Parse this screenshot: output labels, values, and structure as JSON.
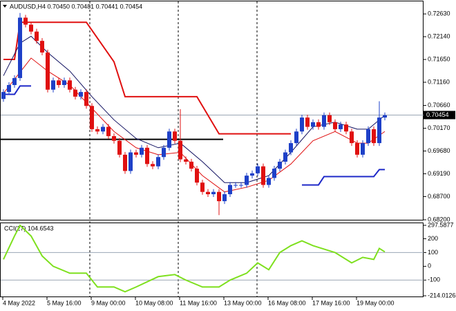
{
  "chart_data": [
    {
      "type": "candlestick",
      "title": "AUDUSD,H4  0.70450 0.70481 0.70441 0.70454",
      "categories": [
        "4 May 2022",
        null,
        null,
        null,
        null,
        null,
        null,
        null,
        "5 May 16:00",
        null,
        null,
        null,
        null,
        null,
        null,
        null,
        "9 May 00:00",
        null,
        null,
        null,
        null,
        null,
        null,
        null,
        "10 May 08:00",
        null,
        null,
        null,
        null,
        null,
        null,
        null,
        "11 May 16:00",
        null,
        null,
        null,
        null,
        null,
        null,
        null,
        "13 May 00:00",
        null,
        null,
        null,
        null,
        null,
        null,
        null,
        "16 May 08:00",
        null,
        null,
        null,
        null,
        null,
        null,
        null,
        "17 May 16:00",
        null,
        null,
        null,
        null,
        null,
        null,
        null,
        "19 May 00:00",
        null,
        null,
        null,
        null,
        null
      ],
      "open": [
        0.708,
        0.7095,
        0.711,
        0.7125,
        0.7255,
        0.724,
        0.7225,
        0.7205,
        0.718,
        0.71,
        0.712,
        0.711,
        0.712,
        0.71,
        0.7085,
        0.7095,
        0.7065,
        0.7015,
        0.701,
        0.702,
        0.7,
        0.699,
        0.696,
        0.6925,
        0.6965,
        0.696,
        0.6975,
        0.694,
        0.6935,
        0.6955,
        0.6975,
        0.701,
        0.699,
        0.695,
        0.6945,
        0.693,
        0.69,
        0.688,
        0.6875,
        0.688,
        0.686,
        0.6875,
        0.6895,
        0.6895,
        0.6895,
        0.6915,
        0.692,
        0.6935,
        0.6895,
        0.691,
        0.693,
        0.6945,
        0.6965,
        0.6985,
        0.701,
        0.704,
        0.702,
        0.703,
        0.702,
        0.7045,
        0.703,
        0.7015,
        0.7025,
        0.701,
        0.6985,
        0.696,
        0.6985,
        0.7015,
        0.6985,
        0.704
      ],
      "high": [
        0.7101,
        0.7116,
        0.7131,
        0.7265,
        0.7261,
        0.7246,
        0.7231,
        0.7211,
        0.7186,
        0.7126,
        0.7126,
        0.7126,
        0.7126,
        0.7106,
        0.7101,
        0.7101,
        0.7071,
        0.7021,
        0.7026,
        0.7026,
        0.7006,
        0.6996,
        0.6966,
        0.6971,
        0.6971,
        0.6981,
        0.6981,
        0.6946,
        0.6961,
        0.6981,
        0.7016,
        0.7016,
        0.7058,
        0.6956,
        0.6951,
        0.6936,
        0.6906,
        0.6886,
        0.6886,
        0.6886,
        0.6881,
        0.6901,
        0.6901,
        0.6901,
        0.6921,
        0.6926,
        0.6941,
        0.6941,
        0.6916,
        0.6936,
        0.6951,
        0.6971,
        0.6991,
        0.7016,
        0.7046,
        0.7046,
        0.7036,
        0.7036,
        0.7051,
        0.7051,
        0.7036,
        0.7031,
        0.7031,
        0.7016,
        0.6991,
        0.6991,
        0.7021,
        0.7021,
        0.7075,
        0.7051
      ],
      "low": [
        0.7074,
        0.7089,
        0.7104,
        0.7119,
        0.7234,
        0.7219,
        0.7199,
        0.7174,
        0.7094,
        0.7094,
        0.7104,
        0.7104,
        0.7094,
        0.7079,
        0.7079,
        0.7059,
        0.7009,
        0.7004,
        0.7004,
        0.6994,
        0.6984,
        0.6954,
        0.6919,
        0.6919,
        0.6954,
        0.6954,
        0.6934,
        0.6929,
        0.6929,
        0.6949,
        0.6969,
        0.6984,
        0.6944,
        0.6939,
        0.6924,
        0.6894,
        0.6874,
        0.6869,
        0.6869,
        0.683,
        0.6854,
        0.6869,
        0.6889,
        0.6889,
        0.6889,
        0.6909,
        0.6914,
        0.6889,
        0.6889,
        0.6904,
        0.6924,
        0.6939,
        0.6959,
        0.6979,
        0.7004,
        0.7014,
        0.7014,
        0.7014,
        0.7014,
        0.7024,
        0.7009,
        0.7009,
        0.7004,
        0.6979,
        0.6954,
        0.6954,
        0.6979,
        0.6979,
        0.6979,
        0.7034
      ],
      "close": [
        0.7095,
        0.711,
        0.7125,
        0.7255,
        0.724,
        0.7225,
        0.7205,
        0.718,
        0.71,
        0.712,
        0.711,
        0.712,
        0.71,
        0.7085,
        0.7095,
        0.7065,
        0.7015,
        0.701,
        0.702,
        0.7,
        0.699,
        0.696,
        0.6925,
        0.6965,
        0.696,
        0.6975,
        0.694,
        0.6935,
        0.6955,
        0.6975,
        0.701,
        0.699,
        0.695,
        0.6945,
        0.693,
        0.69,
        0.688,
        0.6875,
        0.688,
        0.686,
        0.6875,
        0.6895,
        0.6895,
        0.6895,
        0.6915,
        0.692,
        0.6935,
        0.6895,
        0.691,
        0.693,
        0.6945,
        0.6965,
        0.6985,
        0.701,
        0.704,
        0.702,
        0.703,
        0.702,
        0.7045,
        0.703,
        0.7015,
        0.7025,
        0.701,
        0.6985,
        0.696,
        0.6985,
        0.7015,
        0.6985,
        0.704,
        0.7045
      ],
      "up_color": "#1e40c8",
      "down_color": "#e01010",
      "ylim": [
        0.682,
        0.729
      ],
      "yticks": [
        {
          "value": 0.7263,
          "label": "0.72630"
        },
        {
          "value": 0.7214,
          "label": "0.72140"
        },
        {
          "value": 0.7165,
          "label": "0.71650"
        },
        {
          "value": 0.7116,
          "label": "0.71160"
        },
        {
          "value": 0.7066,
          "label": "0.70660"
        },
        {
          "value": 0.7017,
          "label": "0.70170"
        },
        {
          "value": 0.6968,
          "label": "0.69680"
        },
        {
          "value": 0.6919,
          "label": "0.69190"
        },
        {
          "value": 0.687,
          "label": "0.68700"
        },
        {
          "value": 0.682,
          "label": "0.68200"
        }
      ],
      "current_price": {
        "value": 0.70454,
        "label": "0.70454"
      },
      "level_line": 0.6993,
      "lines": [
        {
          "color": "#e01010",
          "width": 2,
          "x": [
            0,
            2,
            3,
            15,
            20,
            22,
            35,
            39,
            52
          ],
          "values": [
            0.7165,
            0.7165,
            0.7245,
            0.7245,
            0.716,
            0.7085,
            0.7085,
            0.7005,
            0.7005
          ]
        },
        {
          "color": "#1e28c8",
          "width": 2,
          "x": [
            0,
            2,
            3,
            5,
            30,
            54,
            57,
            58,
            67,
            68,
            69
          ],
          "values": [
            0.709,
            0.709,
            0.7108,
            0.7108,
            null,
            0.6895,
            0.6895,
            0.6913,
            0.6913,
            0.6928,
            0.6928
          ]
        },
        {
          "color": "#e01010",
          "width": 1,
          "x": [
            0,
            5,
            8,
            12,
            16,
            20,
            24,
            28,
            32,
            36,
            40,
            44,
            48,
            52,
            56,
            60,
            64,
            66,
            69
          ],
          "values": [
            0.7092,
            0.7168,
            0.714,
            0.711,
            0.706,
            0.701,
            0.6975,
            0.696,
            0.6965,
            0.6915,
            0.688,
            0.689,
            0.6905,
            0.694,
            0.699,
            0.701,
            0.6985,
            0.6985,
            0.701
          ]
        },
        {
          "color": "#101060",
          "width": 1,
          "x": [
            0,
            3,
            5,
            8,
            12,
            16,
            20,
            24,
            28,
            32,
            36,
            40,
            44,
            48,
            52,
            56,
            60,
            64,
            66,
            69
          ],
          "values": [
            0.713,
            0.72,
            0.7215,
            0.718,
            0.714,
            0.7085,
            0.7035,
            0.6995,
            0.6975,
            0.6985,
            0.6945,
            0.69,
            0.69,
            0.6915,
            0.6965,
            0.702,
            0.703,
            0.7015,
            0.7015,
            0.7045
          ]
        }
      ]
    },
    {
      "type": "line",
      "title": "CCI(27) 104.6543",
      "color": "#7ee01e",
      "x": [
        0,
        2,
        3,
        5,
        7,
        9,
        12,
        15,
        17,
        20,
        22,
        24,
        28,
        31,
        33,
        36,
        39,
        41,
        44,
        46,
        48,
        50,
        52,
        54,
        56,
        58,
        60,
        63,
        65,
        67,
        68,
        69
      ],
      "values": [
        50,
        220,
        297.5877,
        220,
        75,
        0,
        -50,
        -50,
        -150,
        -150,
        -185,
        -150,
        -75,
        -60,
        -100,
        -150,
        -150,
        -100,
        -50,
        25,
        -25,
        100,
        150,
        185,
        150,
        125,
        100,
        25,
        65,
        50,
        130,
        104.6543
      ],
      "ylim": [
        -214.0126,
        297.5877
      ],
      "yticks": [
        297.5877,
        200,
        100,
        0,
        -100,
        -214.0126
      ],
      "levels": [
        100,
        -100
      ]
    }
  ]
}
